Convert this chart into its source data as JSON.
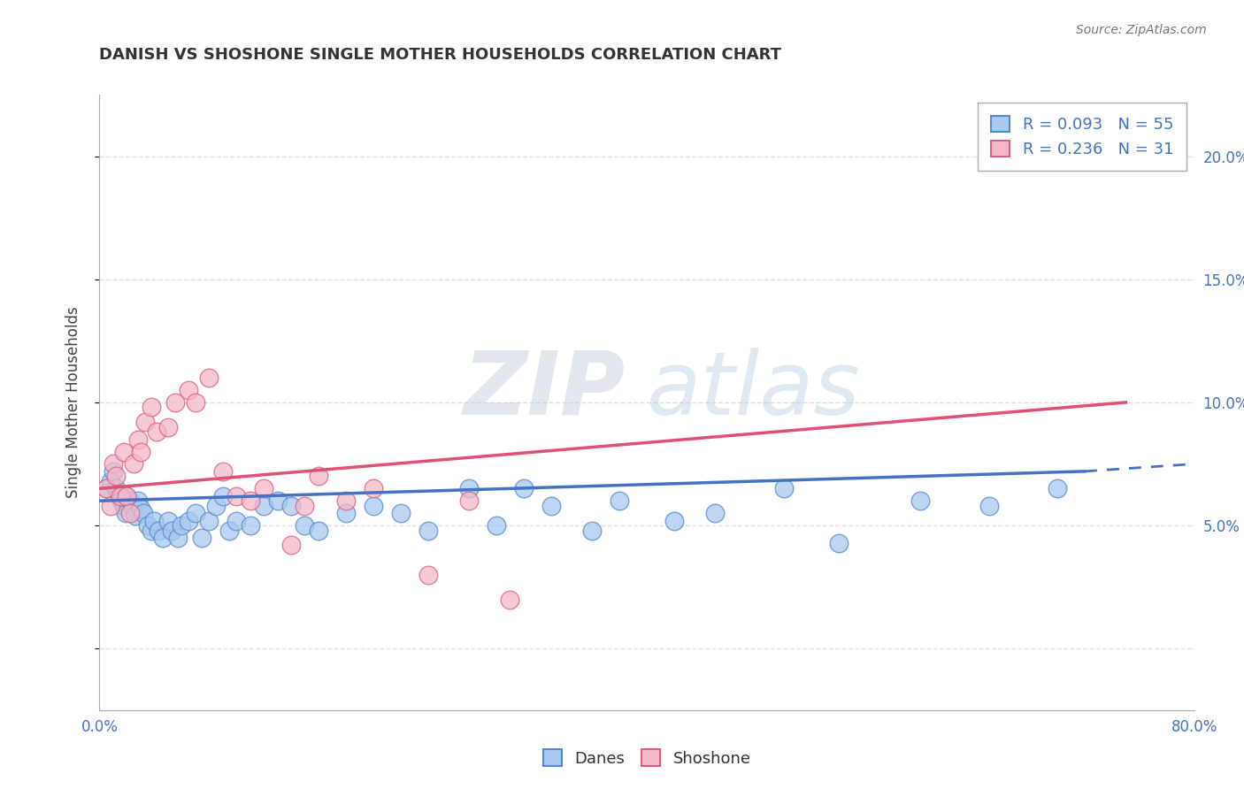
{
  "title": "DANISH VS SHOSHONE SINGLE MOTHER HOUSEHOLDS CORRELATION CHART",
  "source": "Source: ZipAtlas.com",
  "ylabel": "Single Mother Households",
  "xlabel": "",
  "xlim": [
    0.0,
    0.8
  ],
  "ylim": [
    -0.025,
    0.225
  ],
  "ytick_vals": [
    0.0,
    0.05,
    0.1,
    0.15,
    0.2
  ],
  "ytick_labels_right": [
    "",
    "5.0%",
    "10.0%",
    "15.0%",
    "20.0%"
  ],
  "xtick_vals": [
    0.0,
    0.1,
    0.2,
    0.3,
    0.4,
    0.5,
    0.6,
    0.7,
    0.8
  ],
  "xtick_labels": [
    "0.0%",
    "",
    "",
    "",
    "",
    "",
    "",
    "",
    "80.0%"
  ],
  "legend_R_danes": "0.093",
  "legend_N_danes": "55",
  "legend_R_shoshone": "0.236",
  "legend_N_shoshone": "31",
  "danes_color": "#a8c8f0",
  "shoshone_color": "#f5b8c8",
  "danes_edge_color": "#5588cc",
  "shoshone_edge_color": "#d86080",
  "danes_line_color": "#4472C4",
  "shoshone_line_color": "#E05070",
  "watermark_zip": "ZIP",
  "watermark_atlas": "atlas",
  "danes_x": [
    0.005,
    0.008,
    0.01,
    0.012,
    0.014,
    0.016,
    0.018,
    0.019,
    0.02,
    0.022,
    0.024,
    0.026,
    0.028,
    0.03,
    0.032,
    0.035,
    0.038,
    0.04,
    0.043,
    0.046,
    0.05,
    0.053,
    0.057,
    0.06,
    0.065,
    0.07,
    0.075,
    0.08,
    0.085,
    0.09,
    0.095,
    0.1,
    0.11,
    0.12,
    0.13,
    0.14,
    0.15,
    0.16,
    0.18,
    0.2,
    0.22,
    0.24,
    0.27,
    0.29,
    0.31,
    0.33,
    0.36,
    0.38,
    0.42,
    0.45,
    0.5,
    0.54,
    0.6,
    0.65,
    0.7
  ],
  "danes_y": [
    0.065,
    0.068,
    0.072,
    0.065,
    0.063,
    0.06,
    0.058,
    0.055,
    0.062,
    0.06,
    0.058,
    0.054,
    0.06,
    0.057,
    0.055,
    0.05,
    0.048,
    0.052,
    0.048,
    0.045,
    0.052,
    0.048,
    0.045,
    0.05,
    0.052,
    0.055,
    0.045,
    0.052,
    0.058,
    0.062,
    0.048,
    0.052,
    0.05,
    0.058,
    0.06,
    0.058,
    0.05,
    0.048,
    0.055,
    0.058,
    0.055,
    0.048,
    0.065,
    0.05,
    0.065,
    0.058,
    0.048,
    0.06,
    0.052,
    0.055,
    0.065,
    0.043,
    0.06,
    0.058,
    0.065
  ],
  "shoshone_x": [
    0.005,
    0.008,
    0.01,
    0.012,
    0.015,
    0.018,
    0.02,
    0.022,
    0.025,
    0.028,
    0.03,
    0.033,
    0.038,
    0.042,
    0.05,
    0.055,
    0.065,
    0.07,
    0.08,
    0.09,
    0.1,
    0.11,
    0.12,
    0.14,
    0.15,
    0.16,
    0.18,
    0.2,
    0.24,
    0.27,
    0.3
  ],
  "shoshone_y": [
    0.065,
    0.058,
    0.075,
    0.07,
    0.062,
    0.08,
    0.062,
    0.055,
    0.075,
    0.085,
    0.08,
    0.092,
    0.098,
    0.088,
    0.09,
    0.1,
    0.105,
    0.1,
    0.11,
    0.072,
    0.062,
    0.06,
    0.065,
    0.042,
    0.058,
    0.07,
    0.06,
    0.065,
    0.03,
    0.06,
    0.02
  ],
  "danes_trend_x0": 0.0,
  "danes_trend_x1": 0.72,
  "danes_trend_x1_dashed": 0.8,
  "danes_trend_y0": 0.06,
  "danes_trend_y1": 0.072,
  "danes_trend_y1_dashed": 0.075,
  "shoshone_trend_x0": 0.0,
  "shoshone_trend_x1": 0.75,
  "shoshone_trend_y0": 0.065,
  "shoshone_trend_y1": 0.1,
  "background_color": "#ffffff",
  "grid_color": "#dddddd"
}
